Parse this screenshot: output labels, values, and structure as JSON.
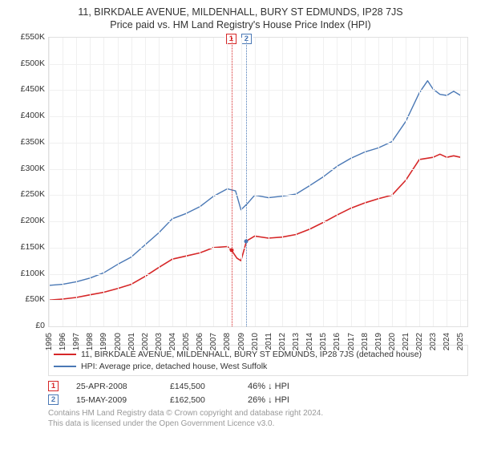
{
  "title": "11, BIRKDALE AVENUE, MILDENHALL, BURY ST EDMUNDS, IP28 7JS",
  "subtitle": "Price paid vs. HM Land Registry's House Price Index (HPI)",
  "chart": {
    "type": "line",
    "background_color": "#ffffff",
    "grid_color": "#f0f0f0",
    "border_color": "#e0e0e0",
    "axis_text_color": "#333333",
    "ylim": [
      0,
      550000
    ],
    "ytick_step": 50000,
    "yticks_labels": [
      "£0",
      "£50K",
      "£100K",
      "£150K",
      "£200K",
      "£250K",
      "£300K",
      "£350K",
      "£400K",
      "£450K",
      "£500K",
      "£550K"
    ],
    "xlim": [
      1995,
      2025.5
    ],
    "xticks": [
      1995,
      1996,
      1997,
      1998,
      1999,
      2000,
      2001,
      2002,
      2003,
      2004,
      2005,
      2006,
      2007,
      2008,
      2009,
      2010,
      2011,
      2012,
      2013,
      2014,
      2015,
      2016,
      2017,
      2018,
      2019,
      2020,
      2021,
      2022,
      2023,
      2024,
      2025
    ],
    "series": [
      {
        "id": "property",
        "label": "11, BIRKDALE AVENUE, MILDENHALL, BURY ST EDMUNDS, IP28 7JS (detached house)",
        "color": "#d62728",
        "line_width": 1.6,
        "points": [
          [
            1995,
            50000
          ],
          [
            1996,
            52000
          ],
          [
            1997,
            55000
          ],
          [
            1998,
            60000
          ],
          [
            1999,
            65000
          ],
          [
            2000,
            72000
          ],
          [
            2001,
            80000
          ],
          [
            2002,
            95000
          ],
          [
            2003,
            112000
          ],
          [
            2004,
            128000
          ],
          [
            2005,
            134000
          ],
          [
            2006,
            140000
          ],
          [
            2007,
            150000
          ],
          [
            2008,
            152000
          ],
          [
            2008.3,
            145500
          ],
          [
            2008.7,
            130000
          ],
          [
            2009,
            125000
          ],
          [
            2009.4,
            162500
          ],
          [
            2010,
            172000
          ],
          [
            2011,
            168000
          ],
          [
            2012,
            170000
          ],
          [
            2013,
            175000
          ],
          [
            2014,
            185000
          ],
          [
            2015,
            198000
          ],
          [
            2016,
            212000
          ],
          [
            2017,
            225000
          ],
          [
            2018,
            235000
          ],
          [
            2019,
            243000
          ],
          [
            2020,
            250000
          ],
          [
            2021,
            278000
          ],
          [
            2022,
            318000
          ],
          [
            2023,
            322000
          ],
          [
            2023.5,
            328000
          ],
          [
            2024,
            322000
          ],
          [
            2024.5,
            325000
          ],
          [
            2025,
            322000
          ]
        ]
      },
      {
        "id": "hpi",
        "label": "HPI: Average price, detached house, West Suffolk",
        "color": "#4a78b5",
        "line_width": 1.4,
        "points": [
          [
            1995,
            78000
          ],
          [
            1996,
            80000
          ],
          [
            1997,
            85000
          ],
          [
            1998,
            92000
          ],
          [
            1999,
            102000
          ],
          [
            2000,
            118000
          ],
          [
            2001,
            132000
          ],
          [
            2002,
            155000
          ],
          [
            2003,
            178000
          ],
          [
            2004,
            205000
          ],
          [
            2005,
            215000
          ],
          [
            2006,
            228000
          ],
          [
            2007,
            248000
          ],
          [
            2008,
            262000
          ],
          [
            2008.6,
            258000
          ],
          [
            2009,
            222000
          ],
          [
            2009.5,
            235000
          ],
          [
            2010,
            250000
          ],
          [
            2011,
            245000
          ],
          [
            2012,
            248000
          ],
          [
            2013,
            252000
          ],
          [
            2014,
            268000
          ],
          [
            2015,
            285000
          ],
          [
            2016,
            305000
          ],
          [
            2017,
            320000
          ],
          [
            2018,
            332000
          ],
          [
            2019,
            340000
          ],
          [
            2020,
            352000
          ],
          [
            2021,
            390000
          ],
          [
            2022,
            445000
          ],
          [
            2022.6,
            468000
          ],
          [
            2023,
            452000
          ],
          [
            2023.5,
            442000
          ],
          [
            2024,
            440000
          ],
          [
            2024.5,
            448000
          ],
          [
            2025,
            440000
          ]
        ]
      }
    ],
    "events": [
      {
        "num": "1",
        "x": 2008.31,
        "color": "#d62728",
        "point_y": 145500
      },
      {
        "num": "2",
        "x": 2009.37,
        "color": "#4a78b5",
        "point_y": 162500
      }
    ]
  },
  "events_table": [
    {
      "num": "1",
      "color": "#d62728",
      "date": "25-APR-2008",
      "price": "£145,500",
      "delta": "46% ↓ HPI"
    },
    {
      "num": "2",
      "color": "#4a78b5",
      "date": "15-MAY-2009",
      "price": "£162,500",
      "delta": "26% ↓ HPI"
    }
  ],
  "footnote_l1": "Contains HM Land Registry data © Crown copyright and database right 2024.",
  "footnote_l2": "This data is licensed under the Open Government Licence v3.0."
}
